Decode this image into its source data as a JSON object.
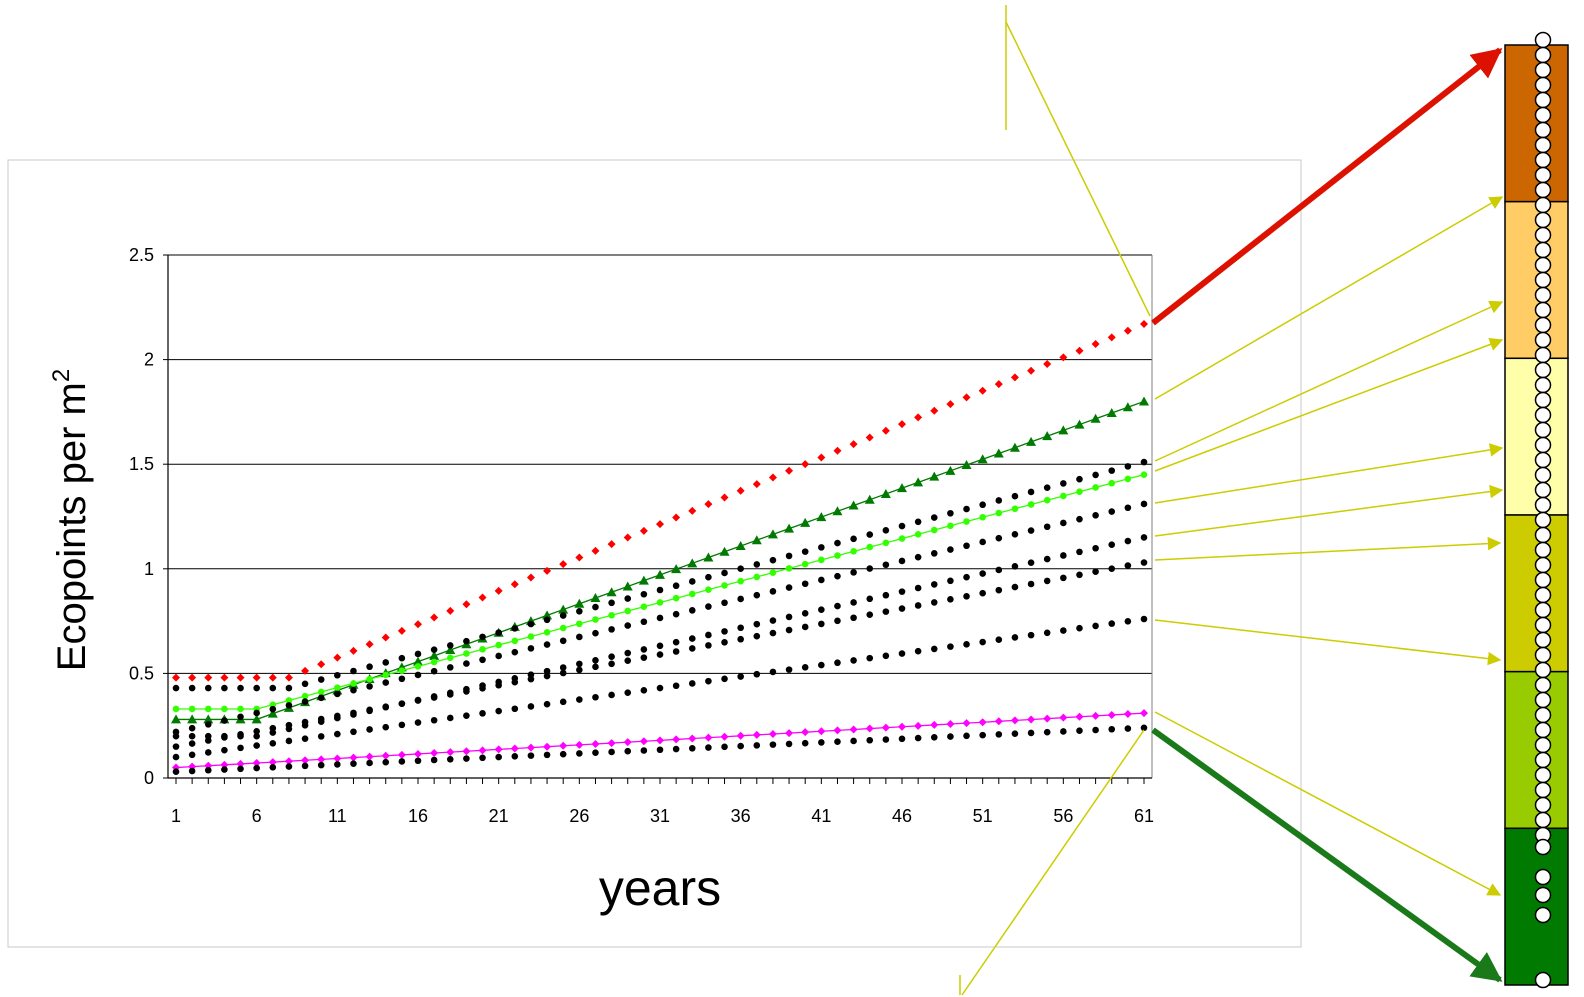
{
  "chart_data": {
    "type": "scatter",
    "title": "",
    "xlabel": "years",
    "ylabel_main": "Ecopoints per m",
    "ylabel_sup": "2",
    "x": [
      1,
      2,
      3,
      4,
      5,
      6,
      7,
      8,
      9,
      10,
      11,
      12,
      13,
      14,
      15,
      16,
      17,
      18,
      19,
      20,
      21,
      22,
      23,
      24,
      25,
      26,
      27,
      28,
      29,
      30,
      31,
      32,
      33,
      34,
      35,
      36,
      37,
      38,
      39,
      40,
      41,
      42,
      43,
      44,
      45,
      46,
      47,
      48,
      49,
      50,
      51,
      52,
      53,
      54,
      55,
      56,
      57,
      58,
      59,
      60,
      61
    ],
    "xticks": [
      "1",
      "6",
      "11",
      "16",
      "21",
      "26",
      "31",
      "36",
      "41",
      "46",
      "51",
      "56",
      "61"
    ],
    "yticks": [
      "0",
      "0.5",
      "1",
      "1.5",
      "2",
      "2.5"
    ],
    "ylim": [
      0,
      2.5
    ],
    "grid": "horizontal",
    "series": [
      {
        "color": "#ff0000",
        "marker": "diamond",
        "line": false,
        "start": 0.48,
        "plateau_end": 8,
        "end": 2.17
      },
      {
        "color": "#007a00",
        "marker": "triangle",
        "line": true,
        "start": 0.28,
        "plateau_end": 6,
        "end": 1.8
      },
      {
        "color": "#000000",
        "marker": "circle",
        "line": false,
        "start": 0.43,
        "plateau_end": 8,
        "end": 1.51
      },
      {
        "color": "#33ff00",
        "marker": "circle",
        "line": true,
        "start": 0.33,
        "plateau_end": 6,
        "end": 1.45
      },
      {
        "color": "#000000",
        "marker": "circle",
        "line": false,
        "start": 0.22,
        "plateau_end": 1,
        "end": 1.31
      },
      {
        "color": "#000000",
        "marker": "circle",
        "line": false,
        "start": 0.2,
        "plateau_end": 6,
        "end": 1.15
      },
      {
        "color": "#000000",
        "marker": "circle",
        "line": false,
        "start": 0.15,
        "plateau_end": 1,
        "end": 1.03
      },
      {
        "color": "#000000",
        "marker": "circle",
        "line": false,
        "start": 0.1,
        "plateau_end": 1,
        "end": 0.76
      },
      {
        "color": "#ff00ff",
        "marker": "diamond",
        "line": true,
        "start": 0.05,
        "plateau_end": 1,
        "end": 0.31
      },
      {
        "color": "#000000",
        "marker": "circle",
        "line": false,
        "start": 0.03,
        "plateau_end": 1,
        "end": 0.24
      }
    ],
    "scale_bands": [
      "#cc6600",
      "#ffcc66",
      "#ffffaa",
      "#cccc00",
      "#99cc00",
      "#007a00"
    ]
  }
}
